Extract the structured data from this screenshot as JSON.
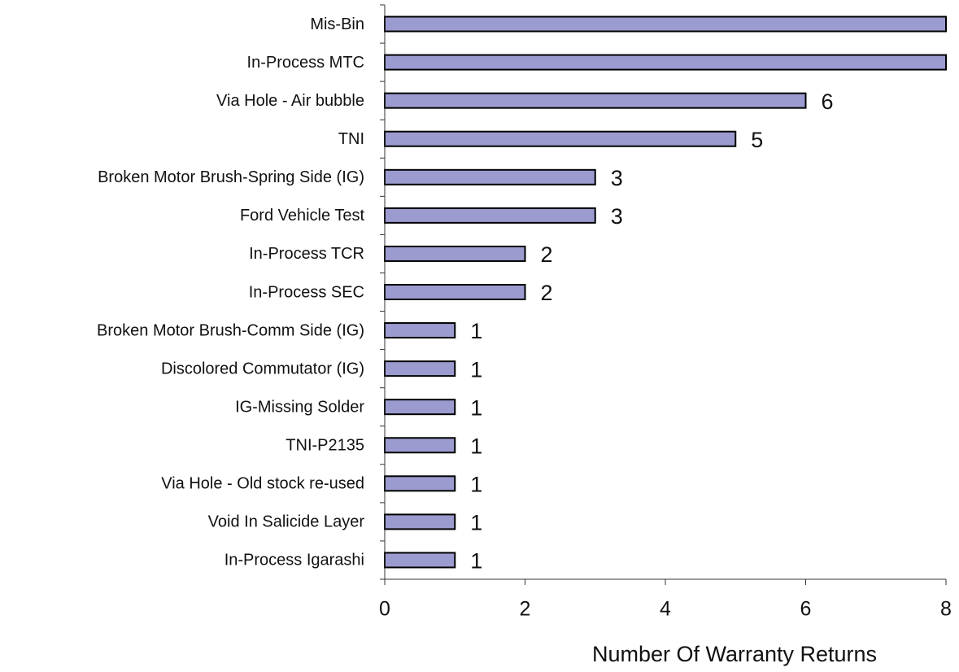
{
  "chart_data": {
    "type": "barh",
    "categories": [
      "Mis-Bin",
      "In-Process MTC",
      "Via Hole - Air bubble",
      "TNI",
      "Broken Motor Brush-Spring Side (IG)",
      "Ford Vehicle Test",
      "In-Process TCR",
      "In-Process SEC",
      "Broken Motor Brush-Comm Side (IG)",
      "Discolored Commutator (IG)",
      "IG-Missing Solder",
      "TNI-P2135",
      "Via Hole - Old stock re-used",
      "Void In Salicide Layer",
      "In-Process Igarashi"
    ],
    "values": [
      8,
      8,
      6,
      5,
      3,
      3,
      2,
      2,
      1,
      1,
      1,
      1,
      1,
      1,
      1
    ],
    "color": "#9b9bd0",
    "xlabel": "Number Of Warranty Returns",
    "xlim": [
      0,
      8
    ],
    "xticks": [
      0,
      2,
      4,
      6,
      8
    ],
    "grid": false
  }
}
